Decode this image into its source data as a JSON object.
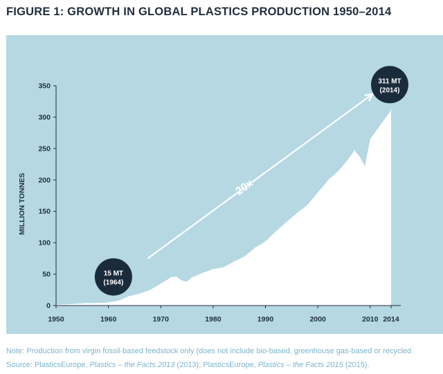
{
  "figure": {
    "title": "FIGURE 1: GROWTH IN GLOBAL PLASTICS PRODUCTION 1950–2014",
    "note": "Note: Production from virgin fossil-based feedstock only (does not include bio-based, greenhouse gas-based or recycled",
    "source": {
      "prefix": "Source: PlasticsEurope, ",
      "title1": "Plastics – the Facts 2013",
      "middle": " (2013); PlasticsEurope, ",
      "title2": "Plastics – the Facts 2015",
      "suffix": " (2015)."
    }
  },
  "colors": {
    "background": "#b5d8e3",
    "fill": "#ffffff",
    "bubble": "#1a2b3c",
    "text": "#1f2e3d",
    "note": "#7ab4cc"
  },
  "chart_data": {
    "type": "area",
    "ylabel": "MILLION TONNES",
    "ylim": [
      0,
      350
    ],
    "xlim": [
      1950,
      2014
    ],
    "y_ticks": [
      0,
      50,
      100,
      150,
      200,
      250,
      300,
      350
    ],
    "x_ticks": [
      "1950",
      "1960",
      "1970",
      "1980",
      "1990",
      "2000",
      "2010",
      "2014"
    ],
    "x": [
      1950,
      1952,
      1954,
      1956,
      1958,
      1960,
      1962,
      1964,
      1966,
      1968,
      1970,
      1972,
      1973,
      1974,
      1975,
      1976,
      1978,
      1980,
      1982,
      1984,
      1986,
      1988,
      1990,
      1992,
      1994,
      1996,
      1998,
      2000,
      2002,
      2004,
      2006,
      2007,
      2008,
      2009,
      2010,
      2012,
      2014
    ],
    "values": [
      1.5,
      2,
      3,
      4,
      4,
      5,
      8,
      15,
      19,
      25,
      35,
      45,
      46,
      40,
      38,
      45,
      52,
      58,
      61,
      70,
      78,
      92,
      102,
      118,
      133,
      147,
      160,
      180,
      200,
      215,
      235,
      247,
      237,
      222,
      265,
      288,
      311
    ],
    "annotations": [
      {
        "label_line1": "15 MT",
        "label_line2": "(1964)",
        "x": 1964,
        "y": 15
      },
      {
        "label_line1": "311 MT",
        "label_line2": "(2014)",
        "x": 2014,
        "y": 311
      }
    ],
    "arrow_label": "20x"
  }
}
